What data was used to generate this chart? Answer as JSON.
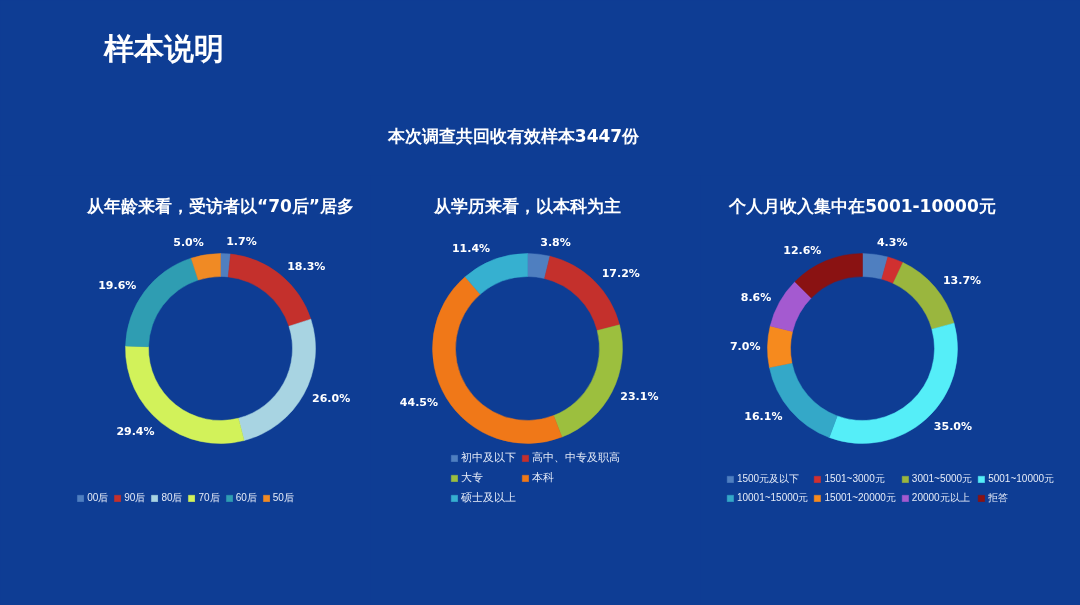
{
  "chart_data": [
    {
      "type": "other",
      "title": "样本说明",
      "subtitle": "本次调查共回收有效样本3447份"
    },
    {
      "type": "donut",
      "title": "从年龄来看，受访者以“70后”居多",
      "categories": [
        "00后",
        "90后",
        "80后",
        "70后",
        "60后",
        "50后"
      ],
      "values": [
        1.7,
        18.3,
        26.0,
        29.4,
        19.6,
        5.0
      ],
      "colors": [
        "#4f7fc0",
        "#c4302c",
        "#a8d4e2",
        "#d2f25a",
        "#2f9db2",
        "#f08a24"
      ],
      "value_labels": [
        "1.7%",
        "18.3%",
        "26.0%",
        "29.4%",
        "19.6%",
        "5.0%"
      ],
      "legend": "bottom"
    },
    {
      "type": "donut",
      "title": "从学历来看，以本科为主",
      "categories": [
        "初中及以下",
        "高中、中专及职高",
        "大专",
        "本科",
        "硕士及以上"
      ],
      "values": [
        3.8,
        17.2,
        23.1,
        44.5,
        11.4
      ],
      "colors": [
        "#4f7fc0",
        "#c4302c",
        "#9cbf3e",
        "#f07818",
        "#36b0d0"
      ],
      "value_labels": [
        "3.8%",
        "17.2%",
        "23.1%",
        "44.5%",
        "11.4%"
      ],
      "legend": "bottom"
    },
    {
      "type": "donut",
      "title": "个人月收入集中在5001-10000元",
      "categories": [
        "1500元及以下",
        "1501~3000元",
        "3001~5000元",
        "5001~10000元",
        "10001~15000元",
        "15001~20000元",
        "20000元以上",
        "拒答"
      ],
      "values": [
        4.3,
        2.7,
        13.7,
        35.0,
        16.1,
        7.0,
        8.6,
        12.6
      ],
      "colors": [
        "#4f7fc0",
        "#d03030",
        "#9ab63e",
        "#55eef8",
        "#34a8c8",
        "#f68a1e",
        "#a45ad0",
        "#8a1212"
      ],
      "value_labels": [
        "4.3%",
        null,
        "13.7%",
        "35.0%",
        "16.1%",
        "7.0%",
        "8.6%",
        "12.6%"
      ],
      "legend": "bottom"
    }
  ]
}
